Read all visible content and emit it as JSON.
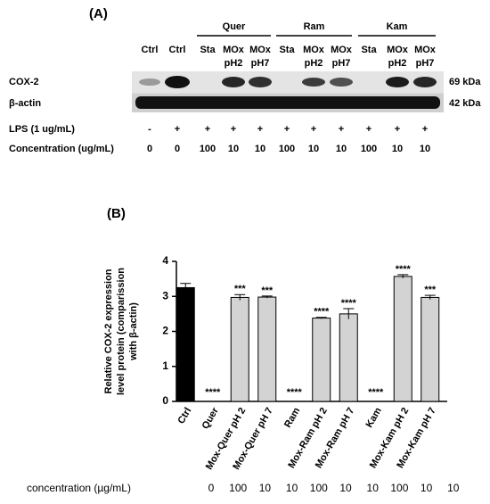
{
  "panel_a": {
    "label": "(A)",
    "groups": [
      "Quer",
      "Ram",
      "Kam"
    ],
    "lanes": [
      [
        "Ctrl"
      ],
      [
        "Ctrl"
      ],
      [
        "Sta"
      ],
      [
        "MOx",
        "pH2"
      ],
      [
        "MOx",
        "pH7"
      ],
      [
        "Sta"
      ],
      [
        "MOx",
        "pH2"
      ],
      [
        "MOx",
        "pH7"
      ],
      [
        "Sta"
      ],
      [
        "MOx",
        "pH2"
      ],
      [
        "MOx",
        "pH7"
      ]
    ],
    "rows": [
      {
        "name": "COX-2",
        "size": "69 kDa"
      },
      {
        "name": "β-actin",
        "size": "42 kDa"
      }
    ],
    "treatments": [
      {
        "label": "LPS (1 ug/mL)",
        "values": [
          "-",
          "+",
          "+",
          "+",
          "+",
          "+",
          "+",
          "+",
          "+",
          "+",
          "+"
        ]
      },
      {
        "label": "Concentration (ug/mL)",
        "values": [
          0,
          0,
          100,
          10,
          10,
          100,
          10,
          10,
          100,
          10,
          10
        ]
      }
    ]
  },
  "chart_data": {
    "type": "bar",
    "panel_label": "(B)",
    "y_label": [
      "Relative COX-2 expression",
      "level protein (comparission",
      "with β-actin)"
    ],
    "categories": [
      "Ctrl",
      "Quer",
      "Mox-Quer pH 2",
      "Mox-Quer pH 7",
      "Ram",
      "Mox-Ram pH 2",
      "Mox-Ram pH 7",
      "Kam",
      "Mox-Kam pH 2",
      "Mox-Kam pH 7"
    ],
    "values": [
      3.25,
      0,
      2.97,
      2.98,
      0,
      2.38,
      2.5,
      0,
      3.57,
      2.97
    ],
    "errors": [
      0.12,
      0,
      0.08,
      0.03,
      0,
      0.02,
      0.15,
      0,
      0.05,
      0.06
    ],
    "significance": [
      null,
      "****",
      "***",
      "***",
      "****",
      "****",
      "****",
      "****",
      "****",
      "***"
    ],
    "colors": [
      "#000000",
      "#d3d3d3",
      "#d3d3d3",
      "#d3d3d3",
      "#d3d3d3",
      "#d3d3d3",
      "#d3d3d3",
      "#d3d3d3",
      "#d3d3d3",
      "#d3d3d3"
    ],
    "ylim": [
      0,
      4
    ],
    "yticks": [
      0,
      1,
      2,
      3,
      4
    ]
  },
  "footer": {
    "label": "concentration (µg/mL)",
    "values": [
      0,
      100,
      10,
      10,
      100,
      10,
      10,
      100,
      10,
      10
    ]
  }
}
